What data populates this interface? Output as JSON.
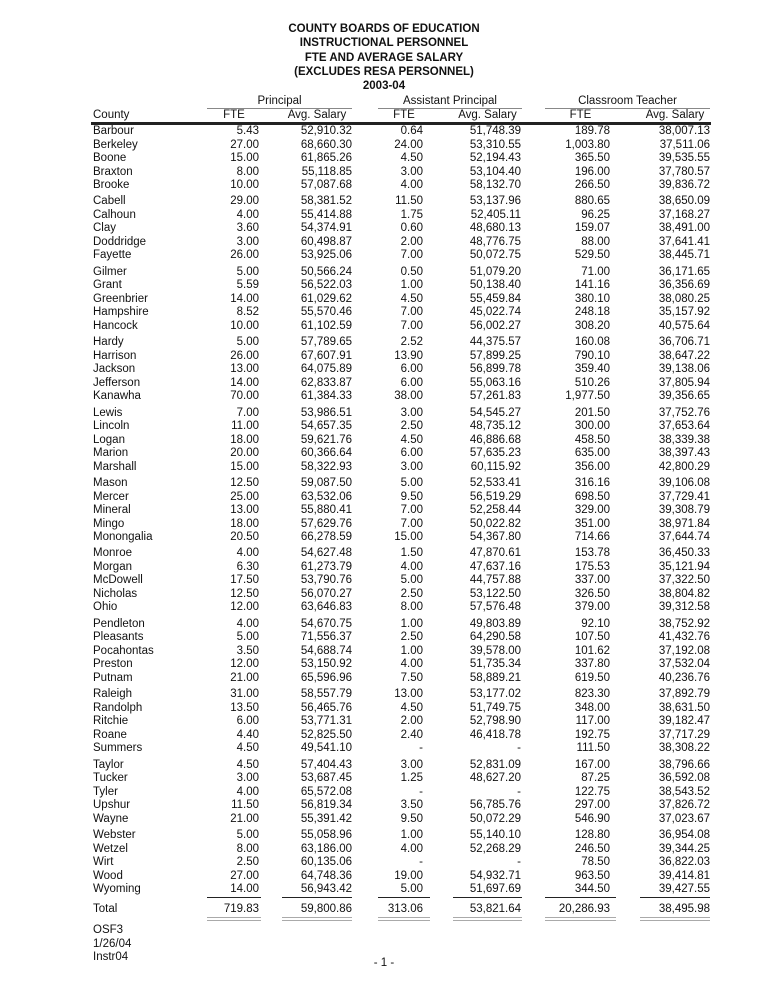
{
  "title_lines": [
    "COUNTY BOARDS OF EDUCATION",
    "INSTRUCTIONAL PERSONNEL",
    "FTE AND AVERAGE SALARY",
    "(EXCLUDES RESA PERSONNEL)",
    "2003-04"
  ],
  "groups": [
    "Principal",
    "Assistant Principal",
    "Classroom Teacher"
  ],
  "columns": [
    "County",
    "FTE",
    "Avg. Salary",
    "FTE",
    "Avg. Salary",
    "FTE",
    "Avg. Salary"
  ],
  "rows": [
    [
      [
        "Barbour",
        "5.43",
        "52,910.32",
        "0.64",
        "51,748.39",
        "189.78",
        "38,007.13"
      ],
      [
        "Berkeley",
        "27.00",
        "68,660.30",
        "24.00",
        "53,310.55",
        "1,003.80",
        "37,511.06"
      ],
      [
        "Boone",
        "15.00",
        "61,865.26",
        "4.50",
        "52,194.43",
        "365.50",
        "39,535.55"
      ],
      [
        "Braxton",
        "8.00",
        "55,118.85",
        "3.00",
        "53,104.40",
        "196.00",
        "37,780.57"
      ],
      [
        "Brooke",
        "10.00",
        "57,087.68",
        "4.00",
        "58,132.70",
        "266.50",
        "39,836.72"
      ]
    ],
    [
      [
        "Cabell",
        "29.00",
        "58,381.52",
        "11.50",
        "53,137.96",
        "880.65",
        "38,650.09"
      ],
      [
        "Calhoun",
        "4.00",
        "55,414.88",
        "1.75",
        "52,405.11",
        "96.25",
        "37,168.27"
      ],
      [
        "Clay",
        "3.60",
        "54,374.91",
        "0.60",
        "48,680.13",
        "159.07",
        "38,491.00"
      ],
      [
        "Doddridge",
        "3.00",
        "60,498.87",
        "2.00",
        "48,776.75",
        "88.00",
        "37,641.41"
      ],
      [
        "Fayette",
        "26.00",
        "53,925.06",
        "7.00",
        "50,072.75",
        "529.50",
        "38,445.71"
      ]
    ],
    [
      [
        "Gilmer",
        "5.00",
        "50,566.24",
        "0.50",
        "51,079.20",
        "71.00",
        "36,171.65"
      ],
      [
        "Grant",
        "5.59",
        "56,522.03",
        "1.00",
        "50,138.40",
        "141.16",
        "36,356.69"
      ],
      [
        "Greenbrier",
        "14.00",
        "61,029.62",
        "4.50",
        "55,459.84",
        "380.10",
        "38,080.25"
      ],
      [
        "Hampshire",
        "8.52",
        "55,570.46",
        "7.00",
        "45,022.74",
        "248.18",
        "35,157.92"
      ],
      [
        "Hancock",
        "10.00",
        "61,102.59",
        "7.00",
        "56,002.27",
        "308.20",
        "40,575.64"
      ]
    ],
    [
      [
        "Hardy",
        "5.00",
        "57,789.65",
        "2.52",
        "44,375.57",
        "160.08",
        "36,706.71"
      ],
      [
        "Harrison",
        "26.00",
        "67,607.91",
        "13.90",
        "57,899.25",
        "790.10",
        "38,647.22"
      ],
      [
        "Jackson",
        "13.00",
        "64,075.89",
        "6.00",
        "56,899.78",
        "359.40",
        "39,138.06"
      ],
      [
        "Jefferson",
        "14.00",
        "62,833.87",
        "6.00",
        "55,063.16",
        "510.26",
        "37,805.94"
      ],
      [
        "Kanawha",
        "70.00",
        "61,384.33",
        "38.00",
        "57,261.83",
        "1,977.50",
        "39,356.65"
      ]
    ],
    [
      [
        "Lewis",
        "7.00",
        "53,986.51",
        "3.00",
        "54,545.27",
        "201.50",
        "37,752.76"
      ],
      [
        "Lincoln",
        "11.00",
        "54,657.35",
        "2.50",
        "48,735.12",
        "300.00",
        "37,653.64"
      ],
      [
        "Logan",
        "18.00",
        "59,621.76",
        "4.50",
        "46,886.68",
        "458.50",
        "38,339.38"
      ],
      [
        "Marion",
        "20.00",
        "60,366.64",
        "6.00",
        "57,635.23",
        "635.00",
        "38,397.43"
      ],
      [
        "Marshall",
        "15.00",
        "58,322.93",
        "3.00",
        "60,115.92",
        "356.00",
        "42,800.29"
      ]
    ],
    [
      [
        "Mason",
        "12.50",
        "59,087.50",
        "5.00",
        "52,533.41",
        "316.16",
        "39,106.08"
      ],
      [
        "Mercer",
        "25.00",
        "63,532.06",
        "9.50",
        "56,519.29",
        "698.50",
        "37,729.41"
      ],
      [
        "Mineral",
        "13.00",
        "55,880.41",
        "7.00",
        "52,258.44",
        "329.00",
        "39,308.79"
      ],
      [
        "Mingo",
        "18.00",
        "57,629.76",
        "7.00",
        "50,022.82",
        "351.00",
        "38,971.84"
      ],
      [
        "Monongalia",
        "20.50",
        "66,278.59",
        "15.00",
        "54,367.80",
        "714.66",
        "37,644.74"
      ]
    ],
    [
      [
        "Monroe",
        "4.00",
        "54,627.48",
        "1.50",
        "47,870.61",
        "153.78",
        "36,450.33"
      ],
      [
        "Morgan",
        "6.30",
        "61,273.79",
        "4.00",
        "47,637.16",
        "175.53",
        "35,121.94"
      ],
      [
        "McDowell",
        "17.50",
        "53,790.76",
        "5.00",
        "44,757.88",
        "337.00",
        "37,322.50"
      ],
      [
        "Nicholas",
        "12.50",
        "56,070.27",
        "2.50",
        "53,122.50",
        "326.50",
        "38,804.82"
      ],
      [
        "Ohio",
        "12.00",
        "63,646.83",
        "8.00",
        "57,576.48",
        "379.00",
        "39,312.58"
      ]
    ],
    [
      [
        "Pendleton",
        "4.00",
        "54,670.75",
        "1.00",
        "49,803.89",
        "92.10",
        "38,752.92"
      ],
      [
        "Pleasants",
        "5.00",
        "71,556.37",
        "2.50",
        "64,290.58",
        "107.50",
        "41,432.76"
      ],
      [
        "Pocahontas",
        "3.50",
        "54,688.74",
        "1.00",
        "39,578.00",
        "101.62",
        "37,192.08"
      ],
      [
        "Preston",
        "12.00",
        "53,150.92",
        "4.00",
        "51,735.34",
        "337.80",
        "37,532.04"
      ],
      [
        "Putnam",
        "21.00",
        "65,596.96",
        "7.50",
        "58,889.21",
        "619.50",
        "40,236.76"
      ]
    ],
    [
      [
        "Raleigh",
        "31.00",
        "58,557.79",
        "13.00",
        "53,177.02",
        "823.30",
        "37,892.79"
      ],
      [
        "Randolph",
        "13.50",
        "56,465.76",
        "4.50",
        "51,749.75",
        "348.00",
        "38,631.50"
      ],
      [
        "Ritchie",
        "6.00",
        "53,771.31",
        "2.00",
        "52,798.90",
        "117.00",
        "39,182.47"
      ],
      [
        "Roane",
        "4.40",
        "52,825.50",
        "2.40",
        "46,418.78",
        "192.75",
        "37,717.29"
      ],
      [
        "Summers",
        "4.50",
        "49,541.10",
        "-",
        "-",
        "111.50",
        "38,308.22"
      ]
    ],
    [
      [
        "Taylor",
        "4.50",
        "57,404.43",
        "3.00",
        "52,831.09",
        "167.00",
        "38,796.66"
      ],
      [
        "Tucker",
        "3.00",
        "53,687.45",
        "1.25",
        "48,627.20",
        "87.25",
        "36,592.08"
      ],
      [
        "Tyler",
        "4.00",
        "65,572.08",
        "-",
        "-",
        "122.75",
        "38,543.52"
      ],
      [
        "Upshur",
        "11.50",
        "56,819.34",
        "3.50",
        "56,785.76",
        "297.00",
        "37,826.72"
      ],
      [
        "Wayne",
        "21.00",
        "55,391.42",
        "9.50",
        "50,072.29",
        "546.90",
        "37,023.67"
      ]
    ],
    [
      [
        "Webster",
        "5.00",
        "55,058.96",
        "1.00",
        "55,140.10",
        "128.80",
        "36,954.08"
      ],
      [
        "Wetzel",
        "8.00",
        "63,186.00",
        "4.00",
        "52,268.29",
        "246.50",
        "39,344.25"
      ],
      [
        "Wirt",
        "2.50",
        "60,135.06",
        "-",
        "-",
        "78.50",
        "36,822.03"
      ],
      [
        "Wood",
        "27.00",
        "64,748.36",
        "19.00",
        "54,932.71",
        "963.50",
        "39,414.81"
      ],
      [
        "Wyoming",
        "14.00",
        "56,943.42",
        "5.00",
        "51,697.69",
        "344.50",
        "39,427.55"
      ]
    ]
  ],
  "total": [
    "Total",
    "719.83",
    "59,800.86",
    "313.06",
    "53,821.64",
    "20,286.93",
    "38,495.98"
  ],
  "footer": [
    "OSF3",
    "1/26/04",
    "Instr04"
  ],
  "page_number": "- 1 -"
}
